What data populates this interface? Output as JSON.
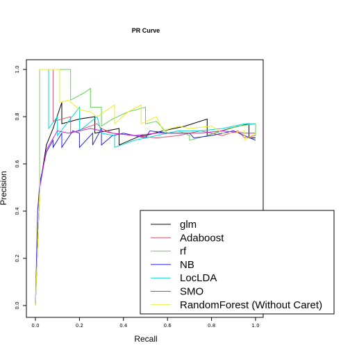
{
  "chart_data": {
    "type": "line",
    "title": "PR Curve",
    "xlabel": "Recall",
    "ylabel": "Precision",
    "xlim": [
      0,
      1
    ],
    "ylim": [
      0,
      1
    ],
    "xticks": [
      "0.0",
      "0.2",
      "0.4",
      "0.6",
      "0.8",
      "1.0"
    ],
    "yticks": [
      "0.0",
      "0.2",
      "0.4",
      "0.6",
      "0.8",
      "1.0"
    ],
    "legend_position": "bottom-right",
    "series": [
      {
        "name": "glm",
        "color": "#000000",
        "points": [
          [
            0,
            0
          ],
          [
            0.02,
            0.5
          ],
          [
            0.05,
            0.68
          ],
          [
            0.08,
            0.75
          ],
          [
            0.12,
            0.86
          ],
          [
            0.12,
            0.77
          ],
          [
            0.2,
            0.79
          ],
          [
            0.27,
            0.8
          ],
          [
            0.27,
            0.73
          ],
          [
            0.38,
            0.75
          ],
          [
            0.38,
            0.68
          ],
          [
            0.48,
            0.72
          ],
          [
            0.5,
            0.72
          ],
          [
            0.58,
            0.74
          ],
          [
            0.68,
            0.76
          ],
          [
            0.78,
            0.79
          ],
          [
            0.78,
            0.72
          ],
          [
            0.88,
            0.75
          ],
          [
            0.97,
            0.77
          ],
          [
            0.97,
            0.71
          ],
          [
            1.0,
            0.71
          ]
        ]
      },
      {
        "name": "Adaboost",
        "color": "#DF536B",
        "points": [
          [
            0,
            0
          ],
          [
            0.02,
            0.5
          ],
          [
            0.02,
            1.0
          ],
          [
            0.08,
            1.0
          ],
          [
            0.08,
            0.78
          ],
          [
            0.16,
            0.8
          ],
          [
            0.16,
            0.73
          ],
          [
            0.28,
            0.77
          ],
          [
            0.3,
            0.75
          ],
          [
            0.35,
            0.73
          ],
          [
            0.45,
            0.72
          ],
          [
            0.55,
            0.71
          ],
          [
            0.65,
            0.72
          ],
          [
            0.75,
            0.74
          ],
          [
            0.85,
            0.72
          ],
          [
            0.92,
            0.74
          ],
          [
            0.95,
            0.71
          ],
          [
            1.0,
            0.72
          ]
        ]
      },
      {
        "name": "rf",
        "color": "#61D04F",
        "points": [
          [
            0,
            0
          ],
          [
            0.02,
            0.5
          ],
          [
            0.02,
            1.0
          ],
          [
            0.16,
            1.0
          ],
          [
            0.16,
            0.87
          ],
          [
            0.22,
            0.9
          ],
          [
            0.25,
            0.92
          ],
          [
            0.25,
            0.84
          ],
          [
            0.3,
            0.84
          ],
          [
            0.3,
            0.76
          ],
          [
            0.35,
            0.79
          ],
          [
            0.42,
            0.82
          ],
          [
            0.5,
            0.84
          ],
          [
            0.5,
            0.77
          ],
          [
            0.55,
            0.78
          ],
          [
            0.6,
            0.73
          ],
          [
            0.65,
            0.74
          ],
          [
            0.7,
            0.72
          ],
          [
            0.7,
            0.7
          ],
          [
            0.78,
            0.72
          ],
          [
            0.85,
            0.74
          ],
          [
            0.92,
            0.76
          ],
          [
            1.0,
            0.77
          ],
          [
            1.0,
            0.72
          ]
        ]
      },
      {
        "name": "NB",
        "color": "#2222DD",
        "points": [
          [
            0,
            0
          ],
          [
            0.01,
            0.4
          ],
          [
            0.02,
            0.52
          ],
          [
            0.05,
            0.65
          ],
          [
            0.08,
            0.7
          ],
          [
            0.08,
            0.67
          ],
          [
            0.12,
            0.73
          ],
          [
            0.12,
            0.67
          ],
          [
            0.17,
            0.74
          ],
          [
            0.2,
            0.73
          ],
          [
            0.2,
            0.67
          ],
          [
            0.26,
            0.73
          ],
          [
            0.26,
            0.68
          ],
          [
            0.3,
            0.75
          ],
          [
            0.3,
            0.68
          ],
          [
            0.35,
            0.72
          ],
          [
            0.4,
            0.73
          ],
          [
            0.45,
            0.72
          ],
          [
            0.5,
            0.71
          ],
          [
            0.52,
            0.74
          ],
          [
            0.6,
            0.73
          ],
          [
            0.7,
            0.73
          ],
          [
            0.72,
            0.71
          ],
          [
            0.8,
            0.72
          ],
          [
            0.9,
            0.74
          ],
          [
            0.95,
            0.72
          ],
          [
            1.0,
            0.7
          ]
        ]
      },
      {
        "name": "LocLDA",
        "color": "#00D8E0",
        "points": [
          [
            0,
            0
          ],
          [
            0.02,
            0.5
          ],
          [
            0.02,
            1.0
          ],
          [
            0.06,
            1.0
          ],
          [
            0.06,
            0.75
          ],
          [
            0.1,
            0.8
          ],
          [
            0.1,
            0.72
          ],
          [
            0.2,
            0.84
          ],
          [
            0.2,
            0.74
          ],
          [
            0.28,
            0.8
          ],
          [
            0.3,
            0.73
          ],
          [
            0.36,
            0.72
          ],
          [
            0.36,
            0.67
          ],
          [
            0.45,
            0.7
          ],
          [
            0.55,
            0.72
          ],
          [
            0.65,
            0.74
          ],
          [
            0.75,
            0.74
          ],
          [
            0.85,
            0.75
          ],
          [
            0.95,
            0.77
          ],
          [
            1.0,
            0.77
          ]
        ]
      },
      {
        "name": "SMO",
        "color": "#CC22CC",
        "points": [
          [
            0,
            0
          ],
          [
            0.02,
            0.5
          ],
          [
            0.05,
            0.66
          ],
          [
            0.1,
            0.74
          ],
          [
            0.15,
            0.73
          ],
          [
            0.25,
            0.75
          ],
          [
            0.35,
            0.73
          ],
          [
            0.45,
            0.72
          ],
          [
            0.55,
            0.73
          ],
          [
            0.65,
            0.73
          ],
          [
            0.75,
            0.73
          ],
          [
            0.85,
            0.74
          ],
          [
            0.95,
            0.73
          ],
          [
            1.0,
            0.73
          ]
        ]
      },
      {
        "name": "RandomForest (Without Caret)",
        "color": "#EEEE22",
        "points": [
          [
            0,
            0
          ],
          [
            0.02,
            0.5
          ],
          [
            0.02,
            1.0
          ],
          [
            0.11,
            1.0
          ],
          [
            0.11,
            0.86
          ],
          [
            0.15,
            0.87
          ],
          [
            0.2,
            0.83
          ],
          [
            0.25,
            0.82
          ],
          [
            0.28,
            0.8
          ],
          [
            0.36,
            0.85
          ],
          [
            0.36,
            0.77
          ],
          [
            0.42,
            0.82
          ],
          [
            0.48,
            0.85
          ],
          [
            0.48,
            0.77
          ],
          [
            0.55,
            0.8
          ],
          [
            0.58,
            0.74
          ],
          [
            0.65,
            0.76
          ],
          [
            0.7,
            0.75
          ],
          [
            0.8,
            0.76
          ],
          [
            0.85,
            0.73
          ],
          [
            0.9,
            0.73
          ],
          [
            0.95,
            0.74
          ],
          [
            0.95,
            0.7
          ],
          [
            1.0,
            0.73
          ]
        ]
      }
    ]
  }
}
